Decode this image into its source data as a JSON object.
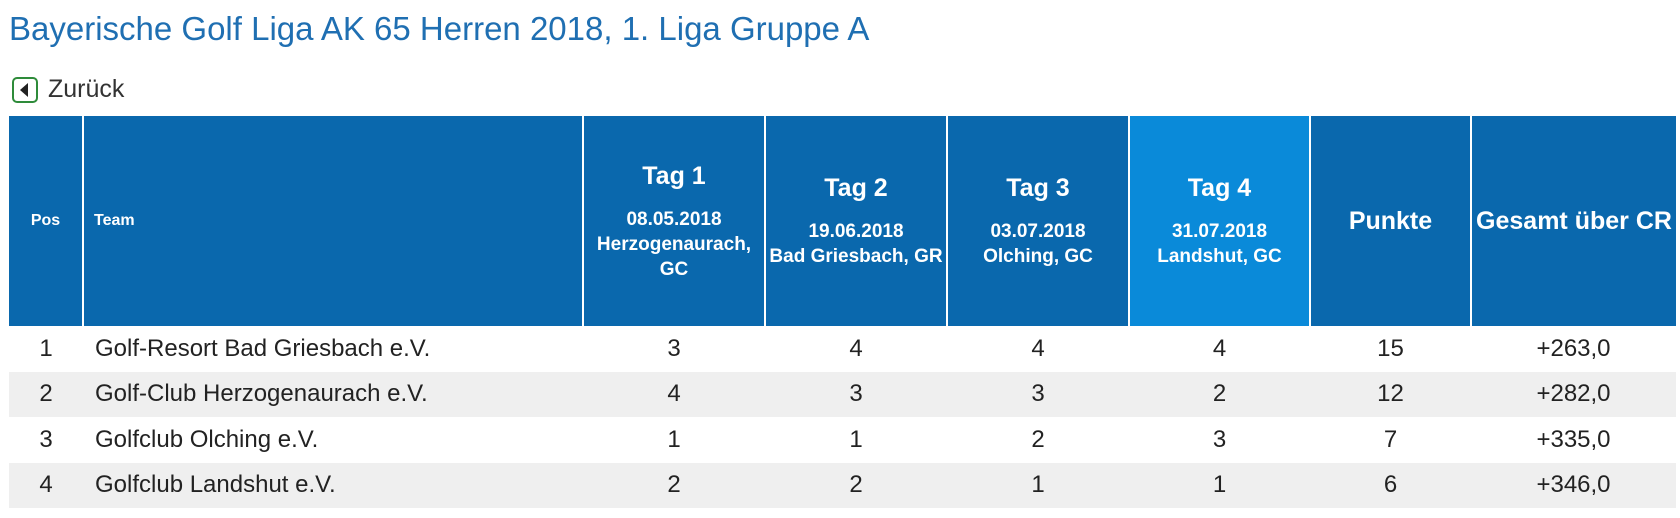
{
  "page": {
    "title": "Bayerische Golf Liga AK 65 Herren 2018, 1. Liga Gruppe A",
    "back_label": "Zurück"
  },
  "colors": {
    "title": "#1f6fb2",
    "header_bg": "#0a68ad",
    "header_active_bg": "#0a8ad9",
    "row_alt_bg": "#efefef",
    "back_icon": "#2e8b3a"
  },
  "icons": {
    "back": "chevron-left-icon"
  },
  "table": {
    "headers": {
      "pos": "Pos",
      "team": "Team",
      "days": [
        {
          "label": "Tag 1",
          "date": "08.05.2018",
          "location": "Herzogenaurach, GC"
        },
        {
          "label": "Tag 2",
          "date": "19.06.2018",
          "location": "Bad Griesbach, GR"
        },
        {
          "label": "Tag 3",
          "date": "03.07.2018",
          "location": "Olching, GC"
        },
        {
          "label": "Tag 4",
          "date": "31.07.2018",
          "location": "Landshut, GC"
        }
      ],
      "points": "Punkte",
      "total": "Gesamt über CR"
    },
    "rows": [
      {
        "pos": "1",
        "team": "Golf-Resort Bad Griesbach e.V.",
        "days": [
          "3",
          "4",
          "4",
          "4"
        ],
        "points": "15",
        "total": "+263,0"
      },
      {
        "pos": "2",
        "team": "Golf-Club Herzogenaurach e.V.",
        "days": [
          "4",
          "3",
          "3",
          "2"
        ],
        "points": "12",
        "total": "+282,0"
      },
      {
        "pos": "3",
        "team": "Golfclub Olching e.V.",
        "days": [
          "1",
          "1",
          "2",
          "3"
        ],
        "points": "7",
        "total": "+335,0"
      },
      {
        "pos": "4",
        "team": "Golfclub Landshut e.V.",
        "days": [
          "2",
          "2",
          "1",
          "1"
        ],
        "points": "6",
        "total": "+346,0"
      }
    ]
  }
}
